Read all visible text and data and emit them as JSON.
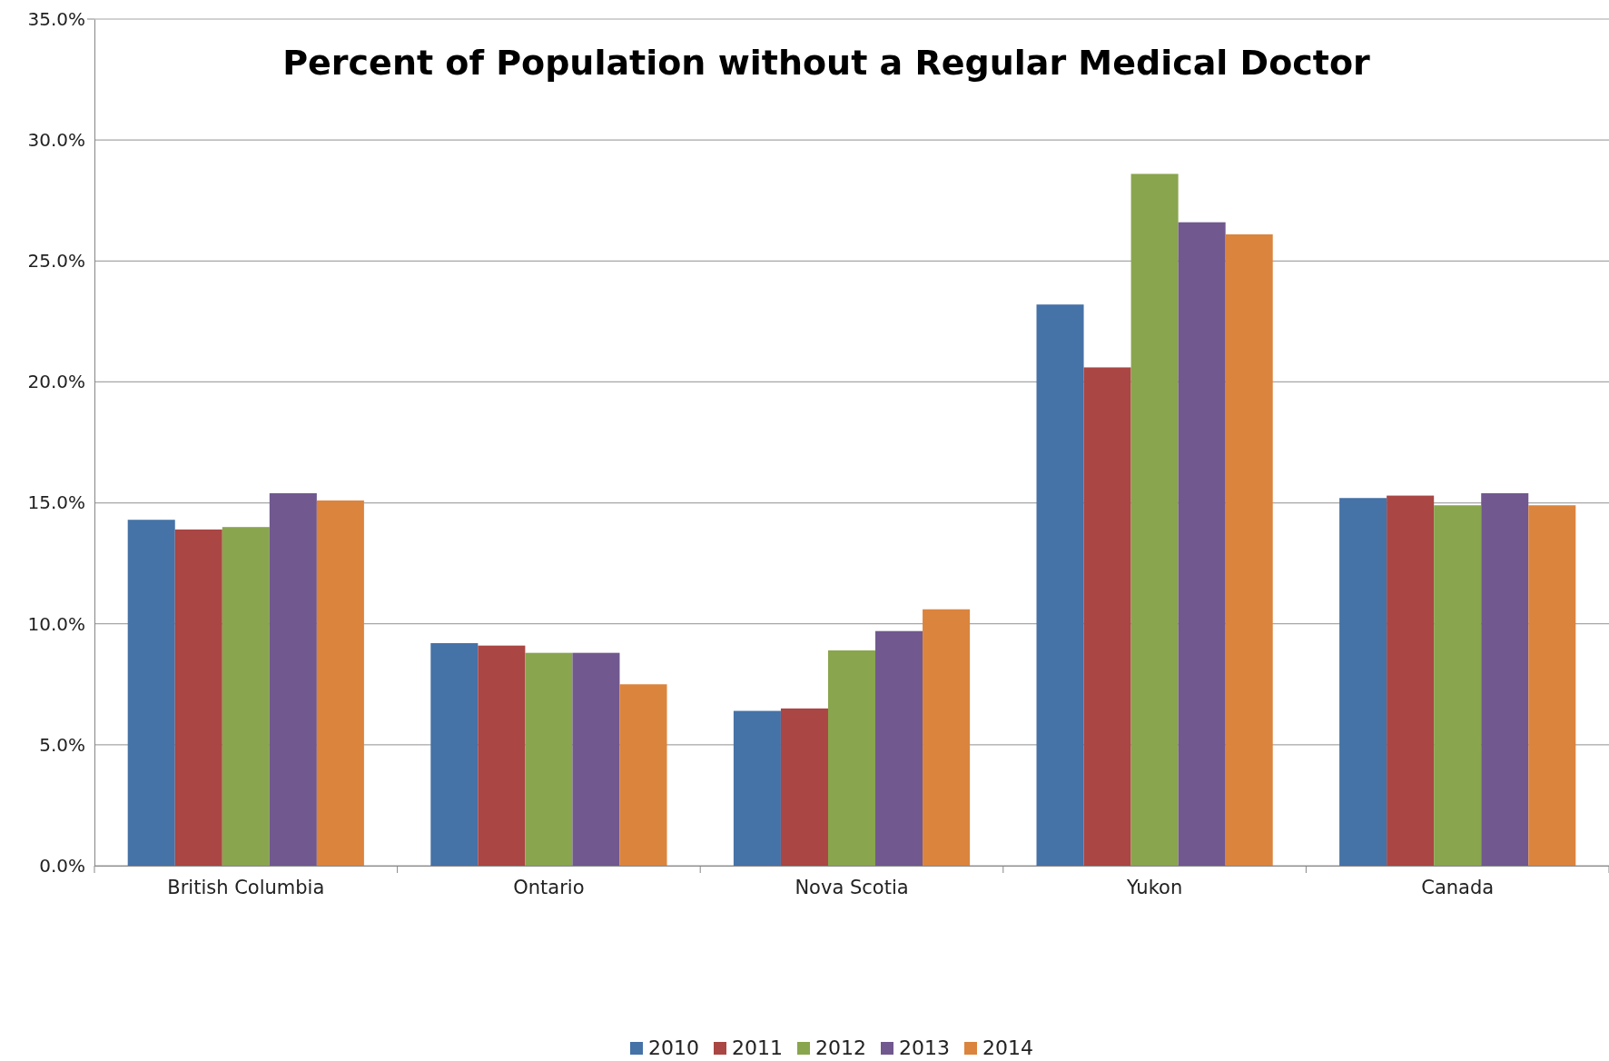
{
  "chart_data": {
    "type": "bar",
    "title": "Percent of Population without a Regular Medical Doctor",
    "categories": [
      "British Columbia",
      "Ontario",
      "Nova Scotia",
      "Yukon",
      "Canada"
    ],
    "series": [
      {
        "name": "2010",
        "color": "#4572a7",
        "values": [
          14.3,
          9.2,
          6.4,
          23.2,
          15.2
        ]
      },
      {
        "name": "2011",
        "color": "#aa4643",
        "values": [
          13.9,
          9.1,
          6.5,
          20.6,
          15.3
        ]
      },
      {
        "name": "2012",
        "color": "#89a54e",
        "values": [
          14.0,
          8.8,
          8.9,
          28.6,
          14.9
        ]
      },
      {
        "name": "2013",
        "color": "#71588f",
        "values": [
          15.4,
          8.8,
          9.7,
          26.6,
          15.4
        ]
      },
      {
        "name": "2014",
        "color": "#db843d",
        "values": [
          15.1,
          7.5,
          10.6,
          26.1,
          14.9
        ]
      }
    ],
    "ylim": [
      0,
      35
    ],
    "yticks": [
      {
        "value": 0,
        "label": "0.0%"
      },
      {
        "value": 5,
        "label": "5.0%"
      },
      {
        "value": 10,
        "label": "10.0%"
      },
      {
        "value": 15,
        "label": "15.0%"
      },
      {
        "value": 20,
        "label": "20.0%"
      },
      {
        "value": 25,
        "label": "25.0%"
      },
      {
        "value": 30,
        "label": "30.0%"
      },
      {
        "value": 35,
        "label": "35.0%"
      }
    ],
    "grid": "y",
    "legend": "bottom"
  }
}
